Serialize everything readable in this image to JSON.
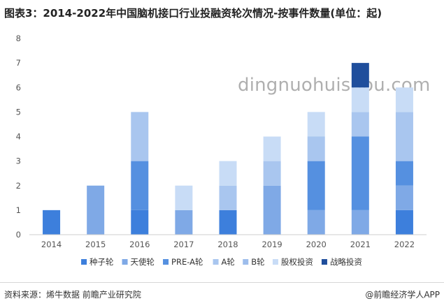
{
  "title": "图表3：2014-2022年中国脑机接口行业投融资轮次情况-按事件数量(单位：起)",
  "source": "资料来源：烯牛数据 前瞻产业研究院",
  "brand": "@前瞻经济学人APP",
  "watermark": "dingnuohuishou.com",
  "colors": {
    "种子轮": "#3d7fdc",
    "天使轮": "#7fa9e6",
    "PRE-A轮": "#5590e0",
    "A轮": "#a9c6ef",
    "B轮": "#9dbdec",
    "股权投资": "#c8dcf6",
    "战略投资": "#1f4e9c"
  },
  "chart_data": {
    "type": "bar",
    "stacked": true,
    "categories": [
      "2014",
      "2015",
      "2016",
      "2017",
      "2018",
      "2019",
      "2020",
      "2021",
      "2022"
    ],
    "ylim": [
      0,
      8
    ],
    "yticks": [
      0,
      1,
      2,
      3,
      4,
      5,
      6,
      7,
      8
    ],
    "legend_position": "bottom",
    "series": [
      {
        "name": "种子轮",
        "values": [
          1,
          0,
          1,
          0,
          1,
          0,
          0,
          0,
          1
        ]
      },
      {
        "name": "天使轮",
        "values": [
          0,
          2,
          0,
          1,
          0,
          2,
          1,
          1,
          1
        ]
      },
      {
        "name": "PRE-A轮",
        "values": [
          0,
          0,
          2,
          0,
          0,
          0,
          2,
          3,
          1
        ]
      },
      {
        "name": "A轮",
        "values": [
          0,
          0,
          2,
          0,
          1,
          1,
          1,
          1,
          2
        ]
      },
      {
        "name": "B轮",
        "values": [
          0,
          0,
          0,
          0,
          0,
          0,
          0,
          0,
          0
        ]
      },
      {
        "name": "股权投资",
        "values": [
          0,
          0,
          0,
          1,
          1,
          1,
          1,
          1,
          1
        ]
      },
      {
        "name": "战略投资",
        "values": [
          0,
          0,
          0,
          0,
          0,
          0,
          0,
          1,
          0
        ]
      }
    ]
  }
}
